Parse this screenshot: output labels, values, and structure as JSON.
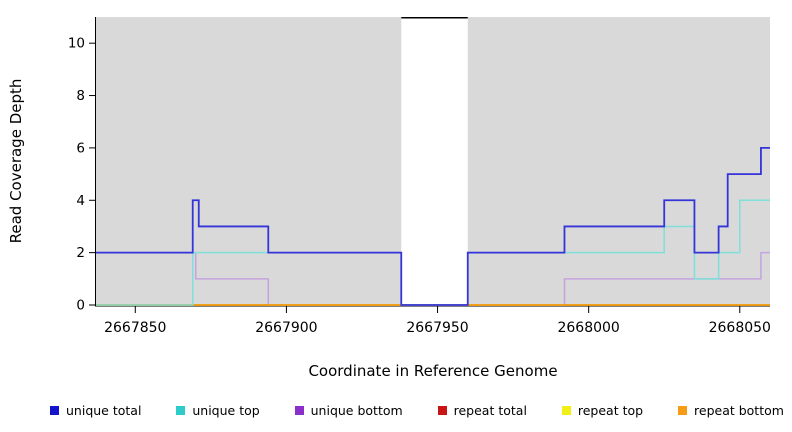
{
  "chart_data": {
    "type": "line",
    "subtype": "step-coverage",
    "title": "",
    "xlabel": "Coordinate in Reference Genome",
    "ylabel": "Read Coverage Depth",
    "xlim": [
      2667837,
      2668060
    ],
    "ylim": [
      0,
      11
    ],
    "x_ticks": [
      2667850,
      2667900,
      2667950,
      2668000,
      2668050
    ],
    "y_ticks": [
      0,
      2,
      4,
      6,
      8,
      10
    ],
    "grid": false,
    "plot_background": "#d9d9d9",
    "page_background": "#ffffff",
    "axis_color": "#000000",
    "gap_region": {
      "start": 2667938,
      "end": 2667960,
      "fill": "#ffffff",
      "cap_color": "#000000"
    },
    "legend_position": "bottom",
    "draw_order": [
      2,
      3,
      4,
      5,
      1,
      0
    ],
    "series": [
      {
        "name": "unique total",
        "color": "#1414cc",
        "line_color": "#3434d9",
        "width": 1.8,
        "steps": [
          [
            2667837,
            2
          ],
          [
            2667869,
            4
          ],
          [
            2667871,
            3
          ],
          [
            2667894,
            2
          ],
          [
            2667938,
            0
          ],
          [
            2667960,
            2
          ],
          [
            2667992,
            3
          ],
          [
            2668025,
            4
          ],
          [
            2668035,
            2
          ],
          [
            2668043,
            3
          ],
          [
            2668046,
            5
          ],
          [
            2668057,
            6
          ],
          [
            2668060,
            6
          ]
        ]
      },
      {
        "name": "unique top",
        "color": "#2ecbcb",
        "line_color": "#7fdfd9",
        "width": 1.5,
        "steps": [
          [
            2667837,
            0
          ],
          [
            2667869,
            2
          ],
          [
            2667938,
            0
          ],
          [
            2667960,
            2
          ],
          [
            2668025,
            3
          ],
          [
            2668035,
            1
          ],
          [
            2668043,
            2
          ],
          [
            2668050,
            4
          ],
          [
            2668060,
            4
          ]
        ]
      },
      {
        "name": "unique bottom",
        "color": "#8b2fc9",
        "line_color": "#c6a3e0",
        "width": 1.5,
        "steps": [
          [
            2667837,
            2
          ],
          [
            2667870,
            1
          ],
          [
            2667894,
            0
          ],
          [
            2667992,
            1
          ],
          [
            2668057,
            2
          ],
          [
            2668060,
            2
          ]
        ]
      },
      {
        "name": "repeat total",
        "color": "#c81414",
        "line_color": "#cc2222",
        "width": 1.5,
        "steps": [
          [
            2667837,
            0
          ],
          [
            2668060,
            0
          ]
        ]
      },
      {
        "name": "repeat top",
        "color": "#f0f014",
        "line_color": "#eeee00",
        "width": 1.5,
        "steps": [
          [
            2667837,
            0
          ],
          [
            2668060,
            0
          ]
        ]
      },
      {
        "name": "repeat bottom",
        "color": "#f59b14",
        "line_color": "#f59b14",
        "width": 1.5,
        "steps": [
          [
            2667837,
            0
          ],
          [
            2668060,
            0
          ]
        ]
      }
    ]
  }
}
